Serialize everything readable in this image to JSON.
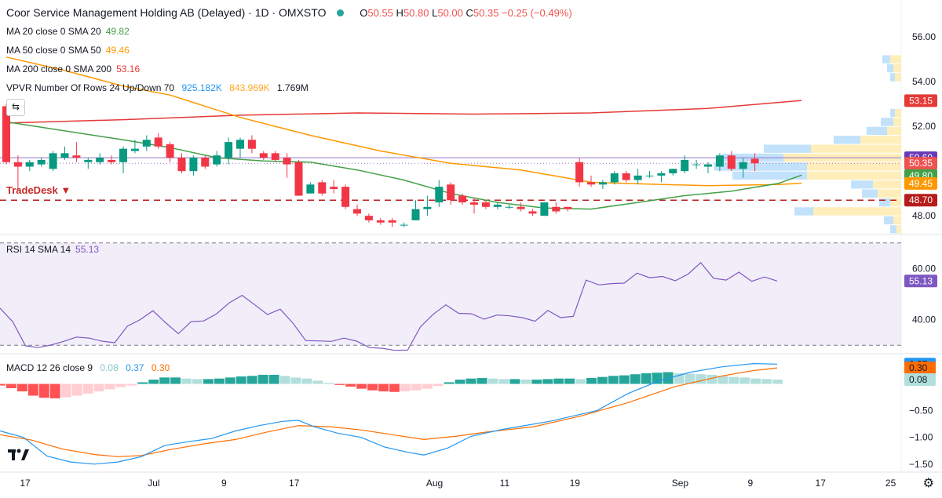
{
  "header": {
    "title": "Coor Service Management Holding AB (Delayed) · 1D · OMXSTO",
    "ohlc": {
      "o_label": "O",
      "o": "50.55",
      "h_label": "H",
      "h": "50.80",
      "l_label": "L",
      "l": "50.00",
      "c_label": "C",
      "c": "50.35",
      "change": "−0.25 (−0.49%)"
    },
    "status_color": "#26a69a"
  },
  "legends": {
    "ma20": {
      "label": "MA 20 close 0 SMA 20",
      "value": "49.82",
      "color": "#43a047"
    },
    "ma50": {
      "label": "MA 50 close 0 SMA 50",
      "value": "49.46",
      "color": "#ff9800"
    },
    "ma200": {
      "label": "MA 200 close 0 SMA 200",
      "value": "53.16",
      "color": "#e53935"
    },
    "vpvr": {
      "label": "VPVR Number Of Rows 24 Up/Down 70",
      "v1": "925.182K",
      "v2": "843.969K",
      "v3": "1.769M"
    },
    "rsi": {
      "label": "RSI 14 SMA 14",
      "value": "55.13"
    },
    "macd": {
      "label": "MACD 12 26 close 9",
      "v1": "0.08",
      "v2": "0.37",
      "v3": "0.30"
    }
  },
  "annotations": {
    "tradedesk": "TradeDesk ▼",
    "scroll_icon": "arrow-left-right-icon",
    "settings_icon": "gear-icon"
  },
  "chart_data": [
    {
      "type": "candlestick",
      "name": "price",
      "ylim": [
        47.2,
        56.6
      ],
      "yticks": [
        "56.00",
        "54.00",
        "52.00",
        "48.00"
      ],
      "ytick_values": [
        56,
        54,
        52,
        48
      ],
      "x_ticks": [
        {
          "label": "17",
          "i": 0
        },
        {
          "label": "Jul",
          "i": 11
        },
        {
          "label": "9",
          "i": 17
        },
        {
          "label": "17",
          "i": 23
        },
        {
          "label": "Aug",
          "i": 35
        },
        {
          "label": "11",
          "i": 41
        },
        {
          "label": "19",
          "i": 47
        },
        {
          "label": "Sep",
          "i": 56
        },
        {
          "label": "9",
          "i": 62
        },
        {
          "label": "17",
          "i": 68
        },
        {
          "label": "25",
          "i": 74
        }
      ],
      "candles": [
        [
          52.9,
          50.4,
          53.0,
          50.3
        ],
        [
          50.4,
          50.2,
          50.7,
          49.1
        ],
        [
          50.2,
          50.4,
          50.5,
          50.0
        ],
        [
          50.3,
          50.5,
          50.6,
          50.2
        ],
        [
          50.1,
          50.8,
          50.9,
          50.0
        ],
        [
          50.6,
          50.8,
          51.1,
          50.5
        ],
        [
          50.7,
          50.6,
          51.3,
          50.4
        ],
        [
          50.4,
          50.5,
          50.6,
          50.1
        ],
        [
          50.4,
          50.6,
          50.8,
          50.3
        ],
        [
          50.5,
          50.4,
          50.7,
          50.3
        ],
        [
          50.4,
          51.0,
          51.1,
          49.9
        ],
        [
          50.9,
          51.0,
          51.4,
          50.8
        ],
        [
          51.1,
          51.4,
          51.6,
          50.9
        ],
        [
          51.5,
          51.1,
          51.7,
          51.0
        ],
        [
          51.2,
          50.6,
          51.3,
          50.4
        ],
        [
          50.6,
          50.0,
          50.8,
          49.9
        ],
        [
          50.0,
          50.6,
          50.7,
          49.8
        ],
        [
          50.6,
          50.2,
          50.7,
          50.1
        ],
        [
          50.3,
          50.7,
          50.9,
          50.2
        ],
        [
          50.6,
          51.3,
          51.5,
          50.3
        ],
        [
          51.0,
          51.4,
          51.5,
          50.6
        ],
        [
          51.4,
          51.0,
          51.6,
          50.8
        ],
        [
          50.8,
          50.6,
          50.9,
          50.5
        ],
        [
          50.8,
          50.5,
          50.9,
          50.4
        ],
        [
          50.6,
          50.3,
          50.8,
          49.7
        ],
        [
          50.4,
          48.9,
          50.5,
          48.9
        ],
        [
          49.0,
          49.4,
          49.5,
          49.0
        ],
        [
          49.5,
          49.0,
          49.6,
          48.9
        ],
        [
          49.3,
          49.2,
          49.6,
          49.0
        ],
        [
          49.3,
          48.4,
          49.4,
          48.3
        ],
        [
          48.3,
          48.1,
          48.5,
          48.0
        ],
        [
          48.0,
          47.8,
          48.1,
          47.7
        ],
        [
          47.8,
          47.7,
          47.9,
          47.6
        ],
        [
          47.8,
          47.7,
          47.9,
          47.5
        ],
        [
          47.6,
          47.6,
          47.7,
          47.5
        ],
        [
          47.8,
          48.3,
          48.7,
          47.8
        ],
        [
          48.3,
          48.4,
          48.9,
          48.0
        ],
        [
          48.6,
          49.3,
          49.6,
          48.4
        ],
        [
          49.4,
          48.7,
          49.5,
          48.5
        ],
        [
          48.9,
          48.6,
          49.0,
          48.5
        ],
        [
          48.6,
          48.5,
          48.8,
          48.1
        ],
        [
          48.6,
          48.4,
          48.7,
          48.3
        ],
        [
          48.4,
          48.5,
          48.6,
          48.3
        ],
        [
          48.4,
          48.4,
          48.5,
          48.3
        ],
        [
          48.4,
          48.3,
          48.6,
          48.2
        ],
        [
          48.2,
          48.1,
          48.3,
          48.0
        ],
        [
          48.0,
          48.6,
          48.6,
          48.0
        ],
        [
          48.4,
          48.2,
          48.6,
          48.1
        ],
        [
          48.4,
          48.3,
          48.4,
          48.2
        ],
        [
          50.4,
          49.5,
          50.6,
          49.3
        ],
        [
          49.5,
          49.4,
          49.8,
          49.3
        ],
        [
          49.4,
          49.5,
          49.6,
          49.2
        ],
        [
          49.5,
          49.9,
          50.0,
          49.4
        ],
        [
          49.9,
          49.6,
          50.0,
          49.5
        ],
        [
          49.6,
          49.8,
          50.1,
          49.4
        ],
        [
          49.8,
          49.8,
          50.0,
          49.7
        ],
        [
          49.8,
          49.9,
          50.0,
          49.5
        ],
        [
          49.9,
          50.1,
          50.1,
          49.8
        ],
        [
          50.0,
          50.5,
          50.7,
          49.9
        ],
        [
          50.3,
          50.3,
          50.5,
          50.1
        ],
        [
          50.2,
          50.3,
          50.4,
          49.9
        ],
        [
          50.2,
          50.7,
          50.8,
          50.0
        ],
        [
          50.7,
          50.1,
          50.9,
          50.0
        ],
        [
          50.1,
          50.4,
          50.6,
          49.7
        ],
        [
          50.55,
          50.35,
          50.8,
          50.0
        ]
      ],
      "sma20": [
        [
          0,
          52.2
        ],
        [
          5,
          51.8
        ],
        [
          10,
          51.4
        ],
        [
          14,
          51.05
        ],
        [
          18,
          50.6
        ],
        [
          22,
          50.45
        ],
        [
          26,
          50.4
        ],
        [
          30,
          50.05
        ],
        [
          34,
          49.6
        ],
        [
          38,
          49.0
        ],
        [
          42,
          48.6
        ],
        [
          46,
          48.35
        ],
        [
          50,
          48.3
        ],
        [
          54,
          48.6
        ],
        [
          58,
          48.9
        ],
        [
          62,
          49.1
        ],
        [
          66,
          49.45
        ],
        [
          68,
          49.82
        ]
      ],
      "sma50": [
        [
          0,
          55.1
        ],
        [
          5,
          54.5
        ],
        [
          10,
          53.8
        ],
        [
          14,
          53.4
        ],
        [
          20,
          52.4
        ],
        [
          26,
          51.6
        ],
        [
          32,
          50.9
        ],
        [
          38,
          50.35
        ],
        [
          44,
          50.05
        ],
        [
          50,
          49.5
        ],
        [
          56,
          49.4
        ],
        [
          60,
          49.35
        ],
        [
          66,
          49.4
        ],
        [
          68,
          49.46
        ]
      ],
      "sma200": [
        [
          0,
          52.15
        ],
        [
          10,
          52.3
        ],
        [
          20,
          52.5
        ],
        [
          30,
          52.6
        ],
        [
          40,
          52.55
        ],
        [
          50,
          52.6
        ],
        [
          60,
          52.8
        ],
        [
          68,
          53.16
        ]
      ],
      "hlines": [
        {
          "value": 50.6,
          "color": "#9575cd",
          "style": "solid"
        },
        {
          "value": 50.35,
          "color": "#9575cd",
          "style": "dotted"
        },
        {
          "value": 48.7,
          "color": "#b71c1c",
          "style": "dashed"
        }
      ],
      "price_labels": [
        {
          "value": 53.15,
          "text": "53.15",
          "color": "#e53935"
        },
        {
          "value": 50.6,
          "text": "50.60",
          "color": "#673ab7"
        },
        {
          "value": 50.35,
          "text": "50.35",
          "color": "#ef5350"
        },
        {
          "value": 49.8,
          "text": "49.80",
          "color": "#43a047"
        },
        {
          "value": 49.45,
          "text": "49.45",
          "color": "#ff9800"
        },
        {
          "value": 48.7,
          "text": "48.70",
          "color": "#b71c1c"
        }
      ],
      "vpvr": [
        {
          "price": 55.0,
          "up": 10,
          "down": 14
        },
        {
          "price": 54.6,
          "up": 8,
          "down": 10
        },
        {
          "price": 54.2,
          "up": 6,
          "down": 8
        },
        {
          "price": 52.6,
          "up": 6,
          "down": 8
        },
        {
          "price": 52.2,
          "up": 16,
          "down": 10
        },
        {
          "price": 51.8,
          "up": 26,
          "down": 18
        },
        {
          "price": 51.4,
          "up": 34,
          "down": 52
        },
        {
          "price": 51.0,
          "up": 60,
          "down": 115
        },
        {
          "price": 50.6,
          "up": 78,
          "down": 150
        },
        {
          "price": 50.2,
          "up": 118,
          "down": 120
        },
        {
          "price": 49.8,
          "up": 95,
          "down": 120
        },
        {
          "price": 49.4,
          "up": 28,
          "down": 36
        },
        {
          "price": 49.0,
          "up": 20,
          "down": 30
        },
        {
          "price": 48.6,
          "up": 14,
          "down": 14
        },
        {
          "price": 48.2,
          "up": 24,
          "down": 112
        },
        {
          "price": 47.8,
          "up": 12,
          "down": 10
        },
        {
          "price": 47.4,
          "up": 8,
          "down": 6
        }
      ]
    },
    {
      "type": "line",
      "name": "rsi",
      "ylim": [
        27,
        73
      ],
      "yticks": [
        "60.00",
        "40.00"
      ],
      "ytick_values": [
        60,
        40
      ],
      "band": [
        70,
        30
      ],
      "value_label": "55.13",
      "values": [
        44.5,
        39.2,
        29.8,
        29.1,
        30.1,
        31.5,
        33.2,
        32.8,
        31.6,
        31.0,
        37.5,
        40.0,
        43.5,
        38.8,
        34.5,
        39.2,
        39.5,
        42.3,
        46.6,
        49.5,
        45.8,
        42.0,
        44.1,
        38.6,
        31.8,
        31.7,
        31.5,
        32.8,
        31.6,
        29.1,
        28.8,
        28.0,
        28.1,
        37.2,
        42.1,
        45.8,
        42.5,
        42.3,
        40.2,
        41.8,
        41.5,
        40.8,
        39.4,
        43.6,
        40.8,
        41.3,
        55.5,
        53.6,
        54.1,
        54.3,
        58.2,
        56.4,
        56.9,
        55.2,
        57.8,
        62.3,
        56.2,
        55.5,
        58.6,
        55.0,
        56.7,
        55.13
      ]
    },
    {
      "type": "macd",
      "name": "macd",
      "ylim": [
        -1.62,
        0.55
      ],
      "yticks": [
        "−0.50",
        "−1.00",
        "−1.50"
      ],
      "ytick_values": [
        -0.5,
        -1.0,
        -1.5
      ],
      "value_labels": [
        {
          "value": 0.37,
          "text": "0.37",
          "color": "#2196f3"
        },
        {
          "value": 0.3,
          "text": "0.30",
          "color": "#ff6d00"
        },
        {
          "value": 0.08,
          "text": "0.08",
          "color": "#b2dfdb"
        }
      ],
      "histogram": [
        -0.03,
        -0.08,
        -0.14,
        -0.22,
        -0.26,
        -0.27,
        -0.25,
        -0.22,
        -0.18,
        -0.14,
        -0.1,
        -0.06,
        -0.03,
        0.03,
        0.08,
        0.12,
        0.12,
        0.1,
        0.09,
        0.09,
        0.1,
        0.12,
        0.14,
        0.15,
        0.17,
        0.17,
        0.15,
        0.12,
        0.1,
        0.06,
        0.02,
        -0.02,
        -0.05,
        -0.09,
        -0.12,
        -0.14,
        -0.15,
        -0.14,
        -0.12,
        -0.09,
        -0.04,
        0.03,
        0.08,
        0.1,
        0.11,
        0.1,
        0.09,
        0.09,
        0.08,
        0.08,
        0.09,
        0.1,
        0.1,
        0.09,
        0.11,
        0.13,
        0.15,
        0.16,
        0.18,
        0.2,
        0.21,
        0.22,
        0.2,
        0.19,
        0.18,
        0.17,
        0.15,
        0.13,
        0.12,
        0.1,
        0.09,
        0.08
      ]
    }
  ],
  "macd_lines": {
    "macd": [
      [
        0,
        -0.88
      ],
      [
        3,
        -1.0
      ],
      [
        6,
        -1.35
      ],
      [
        9,
        -1.46
      ],
      [
        12,
        -1.5
      ],
      [
        15,
        -1.46
      ],
      [
        18,
        -1.36
      ],
      [
        21,
        -1.15
      ],
      [
        24,
        -1.08
      ],
      [
        27,
        -1.02
      ],
      [
        30,
        -0.88
      ],
      [
        33,
        -0.78
      ],
      [
        36,
        -0.7
      ],
      [
        38,
        -0.68
      ],
      [
        40,
        -0.8
      ],
      [
        43,
        -0.92
      ],
      [
        46,
        -1.0
      ],
      [
        49,
        -1.18
      ],
      [
        52,
        -1.28
      ],
      [
        54,
        -1.33
      ],
      [
        57,
        -1.2
      ],
      [
        60,
        -0.98
      ],
      [
        64,
        -0.85
      ],
      [
        70,
        -0.7
      ],
      [
        76,
        -0.5
      ],
      [
        80,
        -0.18
      ],
      [
        84,
        0.06
      ],
      [
        88,
        0.22
      ],
      [
        92,
        0.32
      ],
      [
        96,
        0.38
      ],
      [
        99,
        0.37
      ]
    ],
    "signal": [
      [
        0,
        -0.95
      ],
      [
        4,
        -1.05
      ],
      [
        8,
        -1.22
      ],
      [
        12,
        -1.32
      ],
      [
        15,
        -1.36
      ],
      [
        18,
        -1.34
      ],
      [
        22,
        -1.22
      ],
      [
        26,
        -1.12
      ],
      [
        30,
        -1.04
      ],
      [
        34,
        -0.9
      ],
      [
        38,
        -0.78
      ],
      [
        42,
        -0.8
      ],
      [
        46,
        -0.86
      ],
      [
        50,
        -0.95
      ],
      [
        54,
        -1.04
      ],
      [
        58,
        -0.98
      ],
      [
        62,
        -0.9
      ],
      [
        68,
        -0.8
      ],
      [
        74,
        -0.6
      ],
      [
        80,
        -0.35
      ],
      [
        86,
        -0.05
      ],
      [
        92,
        0.15
      ],
      [
        96,
        0.25
      ],
      [
        99,
        0.3
      ]
    ]
  }
}
